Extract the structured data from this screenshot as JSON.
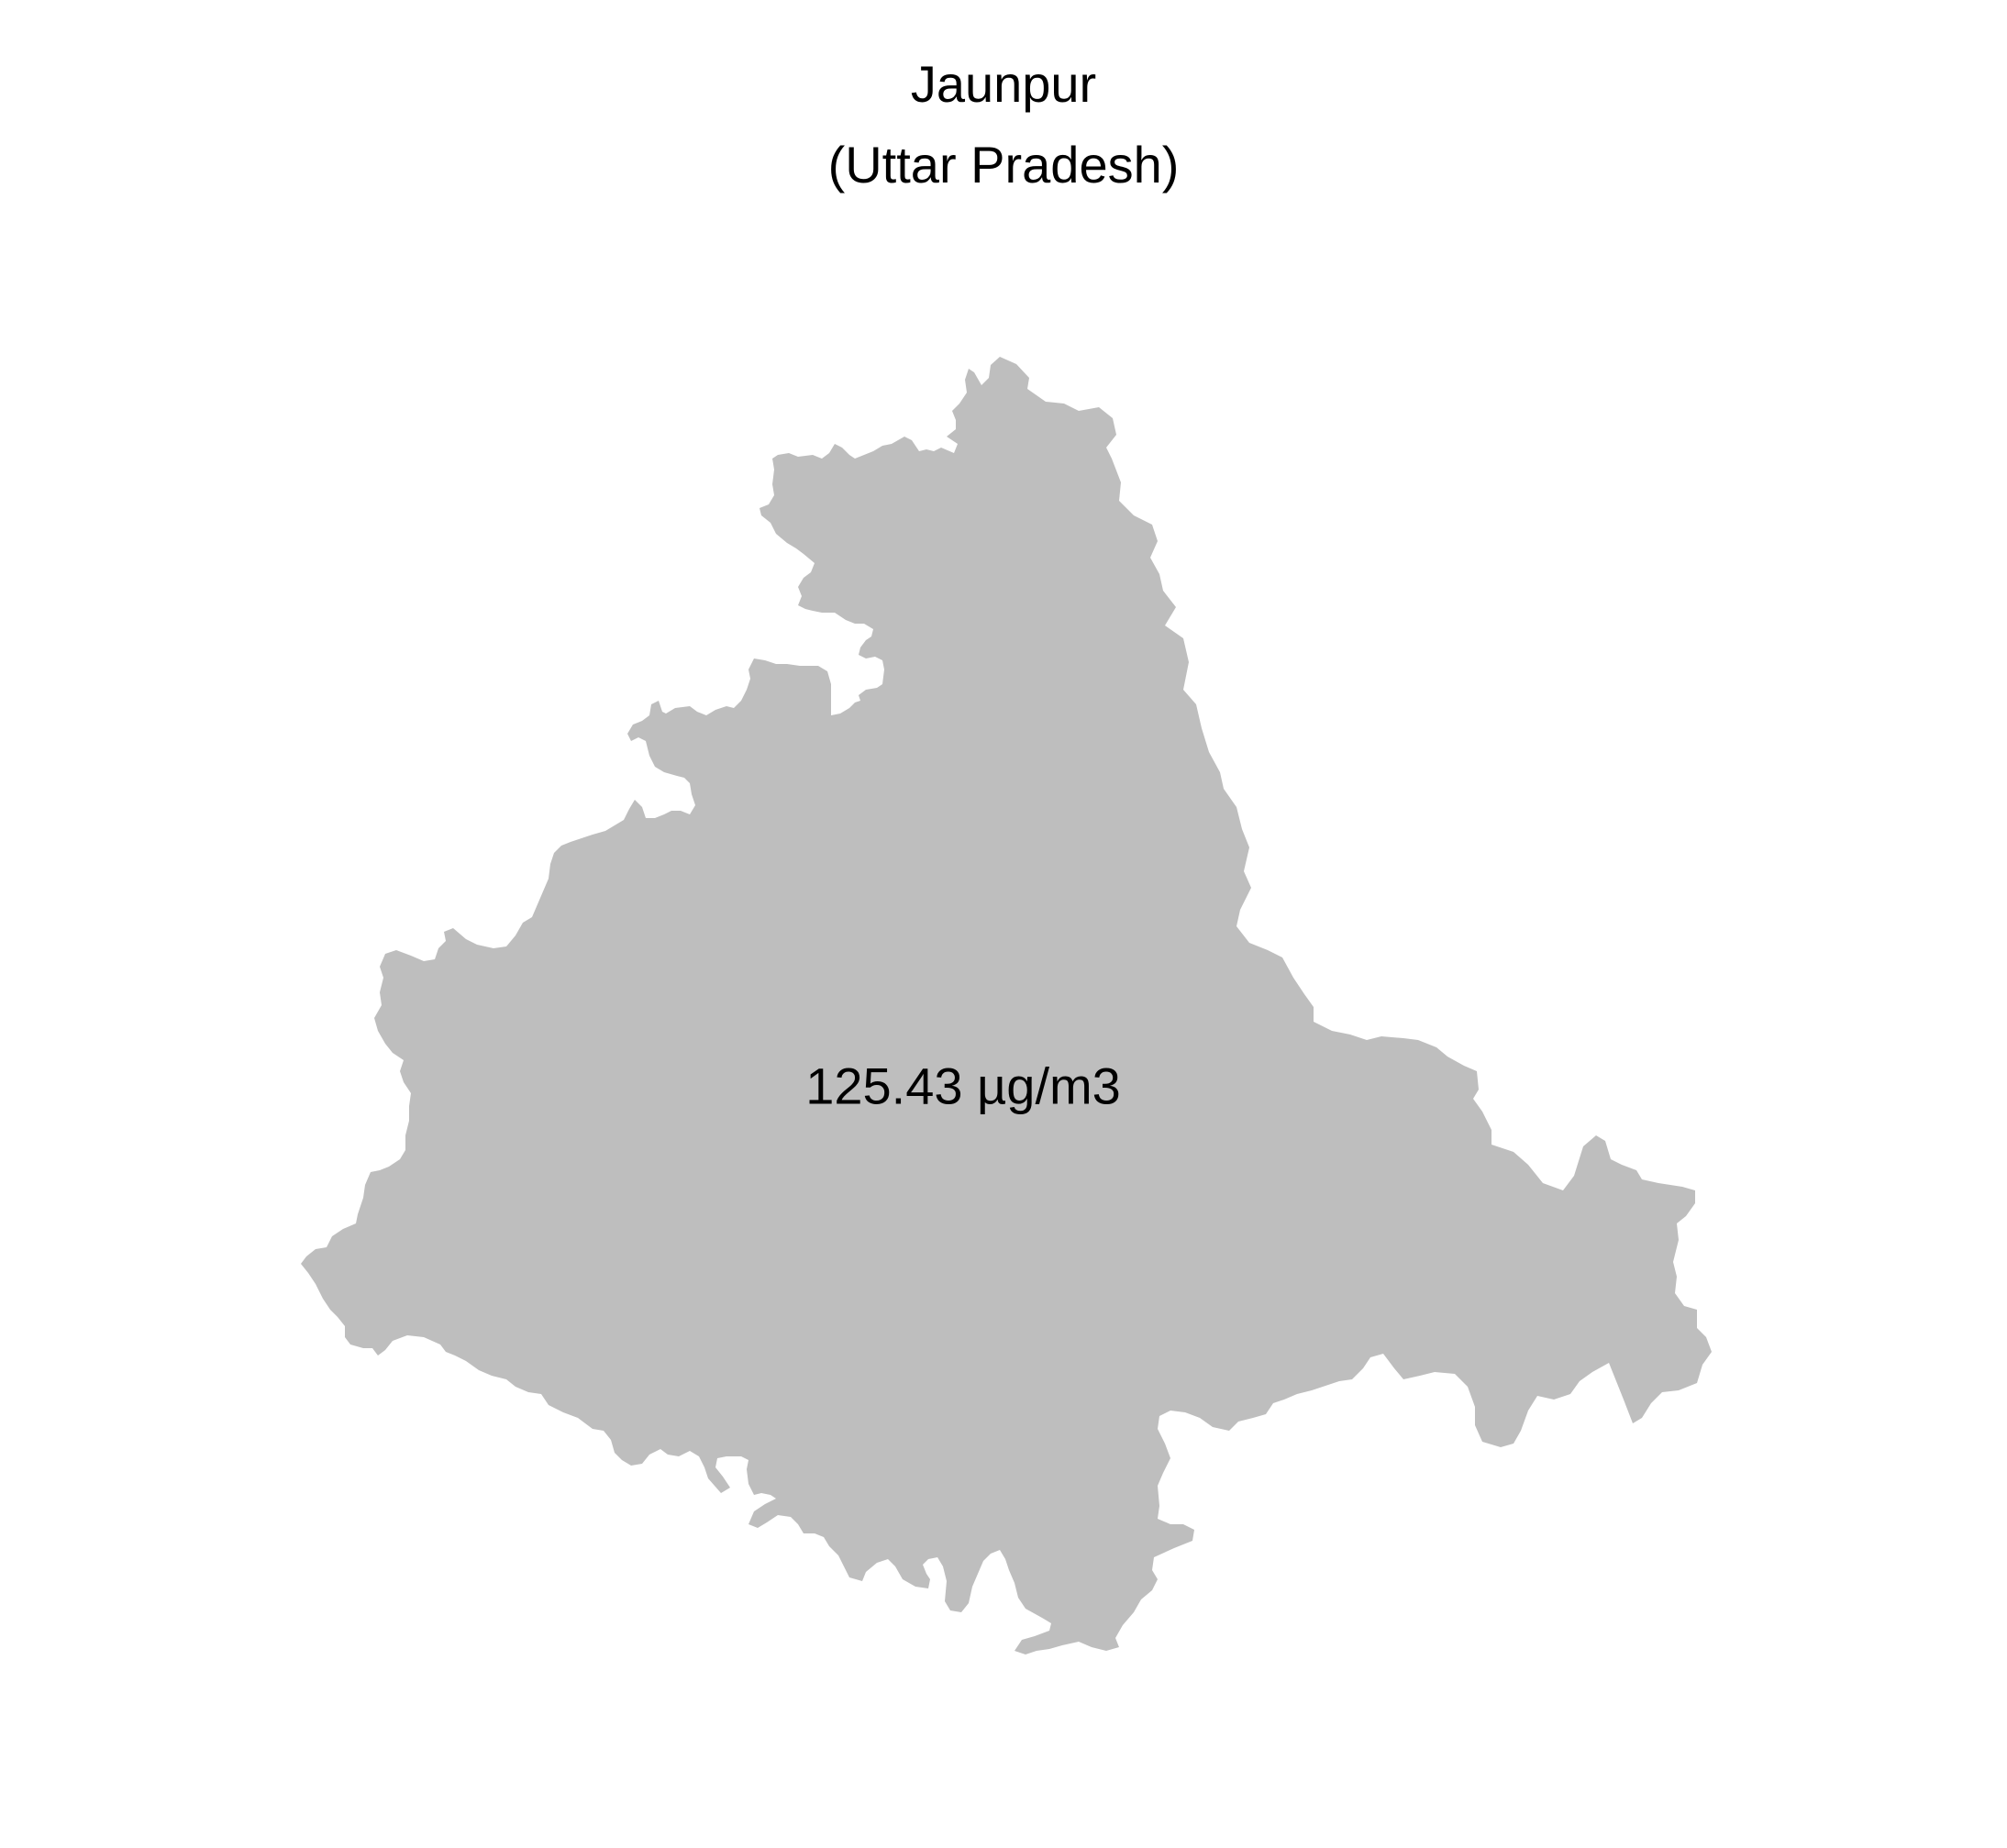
{
  "map": {
    "title": "Jaunpur",
    "subtitle": "(Uttar Pradesh)",
    "region_fill": "#bebebe",
    "background": "#ffffff",
    "value_label": "125.43 µg/m3"
  }
}
